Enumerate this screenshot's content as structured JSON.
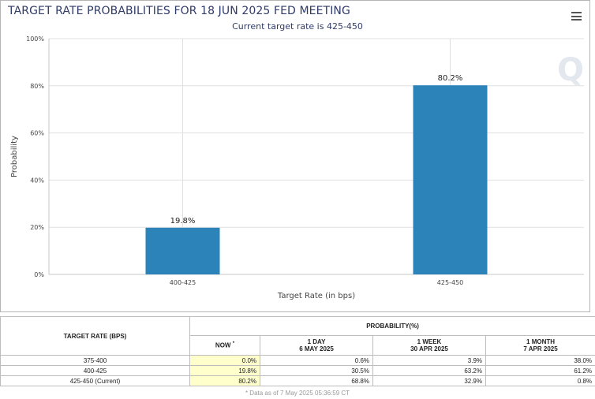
{
  "header": {
    "title": "TARGET RATE PROBABILITIES FOR 18 JUN 2025 FED MEETING",
    "subtitle": "Current target rate is 425-450",
    "menu_icon": "hamburger-menu-icon",
    "watermark": "Q"
  },
  "chart_data": {
    "type": "bar",
    "categories": [
      "400-425",
      "425-450"
    ],
    "values": [
      19.8,
      80.2
    ],
    "data_labels": [
      "19.8%",
      "80.2%"
    ],
    "xlabel": "Target Rate (in bps)",
    "ylabel": "Probability",
    "ylim": [
      0,
      100
    ],
    "yticks": [
      "0%",
      "20%",
      "40%",
      "60%",
      "80%",
      "100%"
    ],
    "grid": true,
    "bar_color": "#2b83ba"
  },
  "table": {
    "col_header_rate": "TARGET RATE (BPS)",
    "col_header_prob": "PROBABILITY(%)",
    "sub_headers": [
      {
        "line1": "NOW",
        "line2": "",
        "marker": "*"
      },
      {
        "line1": "1 DAY",
        "line2": "6 MAY 2025"
      },
      {
        "line1": "1 WEEK",
        "line2": "30 APR 2025"
      },
      {
        "line1": "1 MONTH",
        "line2": "7 APR 2025"
      }
    ],
    "rows": [
      {
        "rate": "375-400",
        "now": "0.0%",
        "day": "0.6%",
        "week": "3.9%",
        "month": "38.0%"
      },
      {
        "rate": "400-425",
        "now": "19.8%",
        "day": "30.5%",
        "week": "63.2%",
        "month": "61.2%"
      },
      {
        "rate": "425-450 (Current)",
        "now": "80.2%",
        "day": "68.8%",
        "week": "32.9%",
        "month": "0.8%"
      }
    ],
    "footnote": "* Data as of 7 May 2025 05:36:59 CT"
  }
}
